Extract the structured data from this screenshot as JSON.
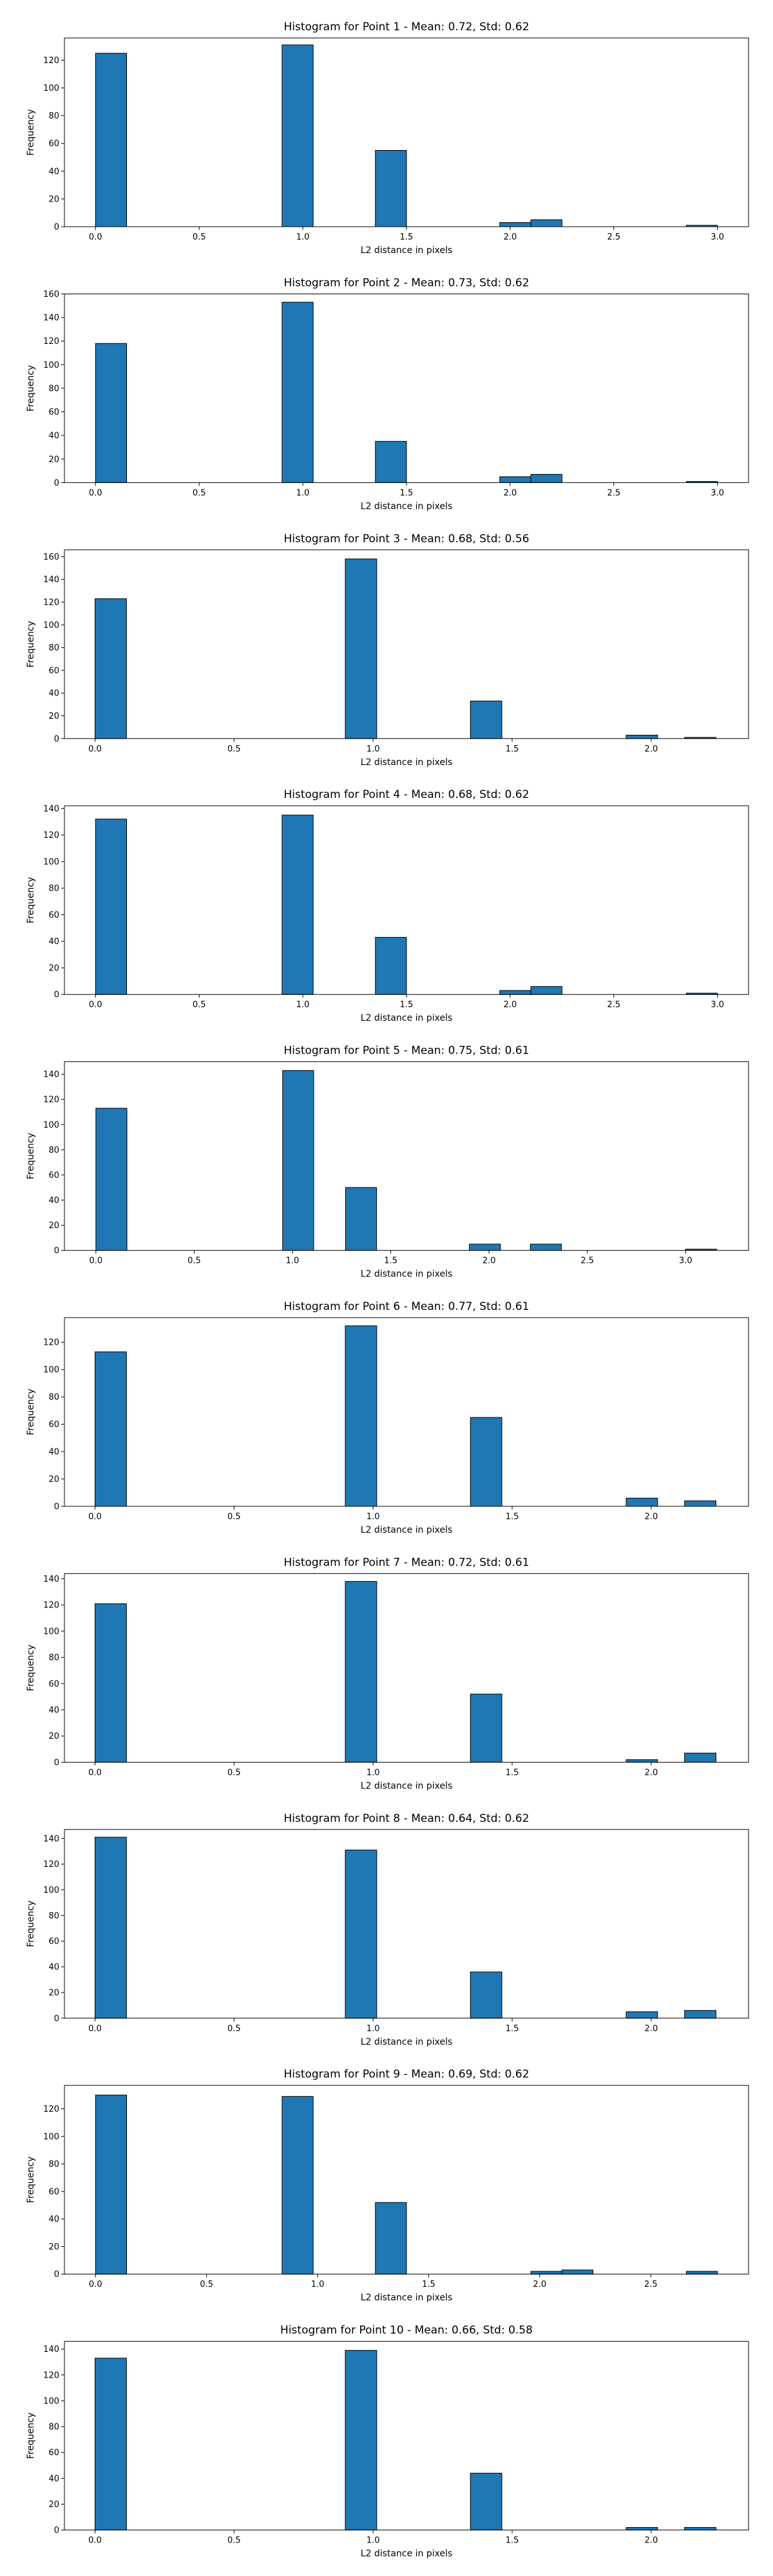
{
  "chart_data": [
    {
      "type": "bar",
      "title": "Histogram for Point 1 - Mean: 0.72, Std: 0.62",
      "xlabel": "L2 distance in pixels",
      "ylabel": "Frequency",
      "xlim": [
        -0.15,
        3.15
      ],
      "ylim": [
        0,
        136
      ],
      "xticks": [
        0.0,
        0.5,
        1.0,
        1.5,
        2.0,
        2.5,
        3.0
      ],
      "yticks": [
        0,
        20,
        40,
        60,
        80,
        100,
        120
      ],
      "bin_width": 0.15,
      "bars": [
        {
          "x": 0.0,
          "value": 125
        },
        {
          "x": 0.9,
          "value": 131
        },
        {
          "x": 1.35,
          "value": 55
        },
        {
          "x": 1.95,
          "value": 3
        },
        {
          "x": 2.1,
          "value": 5
        },
        {
          "x": 2.85,
          "value": 1
        }
      ]
    },
    {
      "type": "bar",
      "title": "Histogram for Point 2 - Mean: 0.73, Std: 0.62",
      "xlabel": "L2 distance in pixels",
      "ylabel": "Frequency",
      "xlim": [
        -0.15,
        3.15
      ],
      "ylim": [
        0,
        160
      ],
      "xticks": [
        0.0,
        0.5,
        1.0,
        1.5,
        2.0,
        2.5,
        3.0
      ],
      "yticks": [
        0,
        20,
        40,
        60,
        80,
        100,
        120,
        140,
        160
      ],
      "bin_width": 0.15,
      "bars": [
        {
          "x": 0.0,
          "value": 118
        },
        {
          "x": 0.9,
          "value": 153
        },
        {
          "x": 1.35,
          "value": 35
        },
        {
          "x": 1.95,
          "value": 5
        },
        {
          "x": 2.1,
          "value": 7
        },
        {
          "x": 2.85,
          "value": 1
        }
      ]
    },
    {
      "type": "bar",
      "title": "Histogram for Point 3 - Mean: 0.68, Std: 0.56",
      "xlabel": "L2 distance in pixels",
      "ylabel": "Frequency",
      "xlim": [
        -0.11,
        2.35
      ],
      "ylim": [
        0,
        166
      ],
      "xticks": [
        0.0,
        0.5,
        1.0,
        1.5,
        2.0
      ],
      "yticks": [
        0,
        20,
        40,
        60,
        80,
        100,
        120,
        140,
        160
      ],
      "bin_width": 0.113,
      "bars": [
        {
          "x": 0.0,
          "value": 123
        },
        {
          "x": 0.9,
          "value": 158
        },
        {
          "x": 1.35,
          "value": 33
        },
        {
          "x": 1.91,
          "value": 3
        },
        {
          "x": 2.12,
          "value": 1
        }
      ]
    },
    {
      "type": "bar",
      "title": "Histogram for Point 4 - Mean: 0.68, Std: 0.62",
      "xlabel": "L2 distance in pixels",
      "ylabel": "Frequency",
      "xlim": [
        -0.15,
        3.15
      ],
      "ylim": [
        0,
        142
      ],
      "xticks": [
        0.0,
        0.5,
        1.0,
        1.5,
        2.0,
        2.5,
        3.0
      ],
      "yticks": [
        0,
        20,
        40,
        60,
        80,
        100,
        120,
        140
      ],
      "bin_width": 0.15,
      "bars": [
        {
          "x": 0.0,
          "value": 132
        },
        {
          "x": 0.9,
          "value": 135
        },
        {
          "x": 1.35,
          "value": 43
        },
        {
          "x": 1.95,
          "value": 3
        },
        {
          "x": 2.1,
          "value": 6
        },
        {
          "x": 2.85,
          "value": 1
        }
      ]
    },
    {
      "type": "bar",
      "title": "Histogram for Point 5 - Mean: 0.75, Std: 0.61",
      "xlabel": "L2 distance in pixels",
      "ylabel": "Frequency",
      "xlim": [
        -0.16,
        3.32
      ],
      "ylim": [
        0,
        150
      ],
      "xticks": [
        0.0,
        0.5,
        1.0,
        1.5,
        2.0,
        2.5,
        3.0
      ],
      "yticks": [
        0,
        20,
        40,
        60,
        80,
        100,
        120,
        140
      ],
      "bin_width": 0.158,
      "bars": [
        {
          "x": 0.0,
          "value": 113
        },
        {
          "x": 0.95,
          "value": 143
        },
        {
          "x": 1.27,
          "value": 50
        },
        {
          "x": 1.9,
          "value": 5
        },
        {
          "x": 2.21,
          "value": 5
        },
        {
          "x": 3.0,
          "value": 1
        }
      ]
    },
    {
      "type": "bar",
      "title": "Histogram for Point 6 - Mean: 0.77, Std: 0.61",
      "xlabel": "L2 distance in pixels",
      "ylabel": "Frequency",
      "xlim": [
        -0.11,
        2.35
      ],
      "ylim": [
        0,
        138
      ],
      "xticks": [
        0.0,
        0.5,
        1.0,
        1.5,
        2.0
      ],
      "yticks": [
        0,
        20,
        40,
        60,
        80,
        100,
        120
      ],
      "bin_width": 0.113,
      "bars": [
        {
          "x": 0.0,
          "value": 113
        },
        {
          "x": 0.9,
          "value": 132
        },
        {
          "x": 1.35,
          "value": 65
        },
        {
          "x": 1.91,
          "value": 6
        },
        {
          "x": 2.12,
          "value": 4
        }
      ]
    },
    {
      "type": "bar",
      "title": "Histogram for Point 7 - Mean: 0.72, Std: 0.61",
      "xlabel": "L2 distance in pixels",
      "ylabel": "Frequency",
      "xlim": [
        -0.11,
        2.35
      ],
      "ylim": [
        0,
        144
      ],
      "xticks": [
        0.0,
        0.5,
        1.0,
        1.5,
        2.0
      ],
      "yticks": [
        0,
        20,
        40,
        60,
        80,
        100,
        120,
        140
      ],
      "bin_width": 0.113,
      "bars": [
        {
          "x": 0.0,
          "value": 121
        },
        {
          "x": 0.9,
          "value": 138
        },
        {
          "x": 1.35,
          "value": 52
        },
        {
          "x": 1.91,
          "value": 2
        },
        {
          "x": 2.12,
          "value": 7
        }
      ]
    },
    {
      "type": "bar",
      "title": "Histogram for Point 8 - Mean: 0.64, Std: 0.62",
      "xlabel": "L2 distance in pixels",
      "ylabel": "Frequency",
      "xlim": [
        -0.11,
        2.35
      ],
      "ylim": [
        0,
        147
      ],
      "xticks": [
        0.0,
        0.5,
        1.0,
        1.5,
        2.0
      ],
      "yticks": [
        0,
        20,
        40,
        60,
        80,
        100,
        120,
        140
      ],
      "bin_width": 0.113,
      "bars": [
        {
          "x": 0.0,
          "value": 141
        },
        {
          "x": 0.9,
          "value": 131
        },
        {
          "x": 1.35,
          "value": 36
        },
        {
          "x": 1.91,
          "value": 5
        },
        {
          "x": 2.12,
          "value": 6
        }
      ]
    },
    {
      "type": "bar",
      "title": "Histogram for Point 9 - Mean: 0.69, Std: 0.62",
      "xlabel": "L2 distance in pixels",
      "ylabel": "Frequency",
      "xlim": [
        -0.14,
        2.94
      ],
      "ylim": [
        0,
        137
      ],
      "xticks": [
        0.0,
        0.5,
        1.0,
        1.5,
        2.0,
        2.5
      ],
      "yticks": [
        0,
        20,
        40,
        60,
        80,
        100,
        120
      ],
      "bin_width": 0.14,
      "bars": [
        {
          "x": 0.0,
          "value": 130
        },
        {
          "x": 0.84,
          "value": 129
        },
        {
          "x": 1.26,
          "value": 52
        },
        {
          "x": 1.96,
          "value": 2
        },
        {
          "x": 2.1,
          "value": 3
        },
        {
          "x": 2.66,
          "value": 2
        }
      ]
    },
    {
      "type": "bar",
      "title": "Histogram for Point 10 - Mean: 0.66, Std: 0.58",
      "xlabel": "L2 distance in pixels",
      "ylabel": "Frequency",
      "xlim": [
        -0.11,
        2.35
      ],
      "ylim": [
        0,
        146
      ],
      "xticks": [
        0.0,
        0.5,
        1.0,
        1.5,
        2.0
      ],
      "yticks": [
        0,
        20,
        40,
        60,
        80,
        100,
        120,
        140
      ],
      "bin_width": 0.113,
      "bars": [
        {
          "x": 0.0,
          "value": 133
        },
        {
          "x": 0.9,
          "value": 139
        },
        {
          "x": 1.35,
          "value": 44
        },
        {
          "x": 1.91,
          "value": 2
        },
        {
          "x": 2.12,
          "value": 2
        }
      ]
    }
  ],
  "colors": {
    "bar_fill": "#1f77b4",
    "bar_edge": "#000000",
    "axis": "#000000",
    "background": "#ffffff"
  }
}
